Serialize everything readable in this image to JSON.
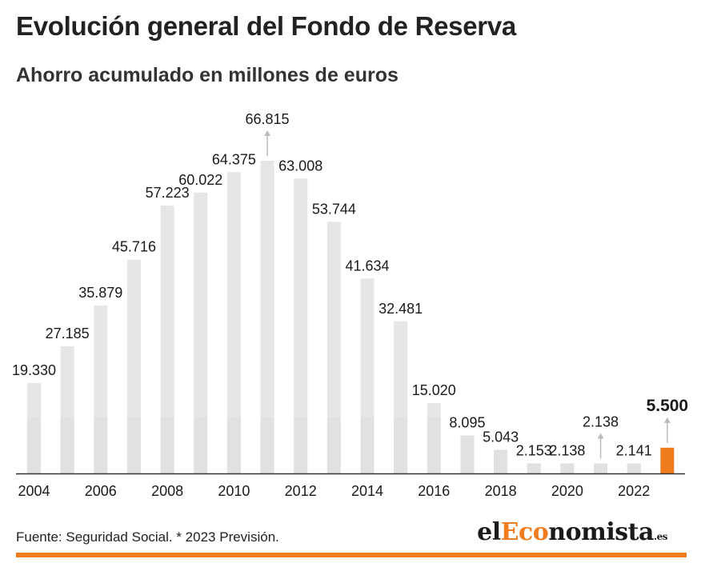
{
  "title": "Evolución general del Fondo de Reserva",
  "subtitle": "Ahorro acumulado en millones de euros",
  "source": "Fuente: Seguridad Social. * 2023 Previsión.",
  "logo": {
    "part1": "el",
    "part2": "Eco",
    "part3": "nomista",
    "tld": ".es"
  },
  "colors": {
    "bar": "#e6e6e6",
    "bar_dark": "#dcdcdc",
    "highlight": "#f07c1e",
    "arrow": "#bbbbbb",
    "rule": "#f07c1e"
  },
  "chart_data": {
    "type": "bar",
    "categories": [
      "2004",
      "2005",
      "2006",
      "2007",
      "2008",
      "2009",
      "2010",
      "2011",
      "2012",
      "2013",
      "2014",
      "2015",
      "2016",
      "2017",
      "2018",
      "2019",
      "2020",
      "2021",
      "2022",
      "2023"
    ],
    "values": [
      19330,
      27185,
      35879,
      45716,
      57223,
      60022,
      64375,
      66815,
      63008,
      53744,
      41634,
      32481,
      15020,
      8095,
      5043,
      2153,
      2138,
      2138,
      2141,
      5500
    ],
    "labels": [
      "19.330",
      "27.185",
      "35.879",
      "45.716",
      "57.223",
      "60.022",
      "64.375",
      "66.815",
      "63.008",
      "53.744",
      "41.634",
      "32.481",
      "15.020",
      "8.095",
      "5.043",
      "2.153",
      "2.138",
      "2.138",
      "2.141",
      "5.500"
    ],
    "xtick_labels": [
      "2004",
      "2006",
      "2008",
      "2010",
      "2012",
      "2014",
      "2016",
      "2018",
      "2020",
      "2022"
    ],
    "ylim": [
      0,
      70000
    ],
    "highlight_category": "2023",
    "arrow_labels": [
      "2011",
      "2021",
      "2023"
    ],
    "grid": false,
    "legend": "none"
  }
}
